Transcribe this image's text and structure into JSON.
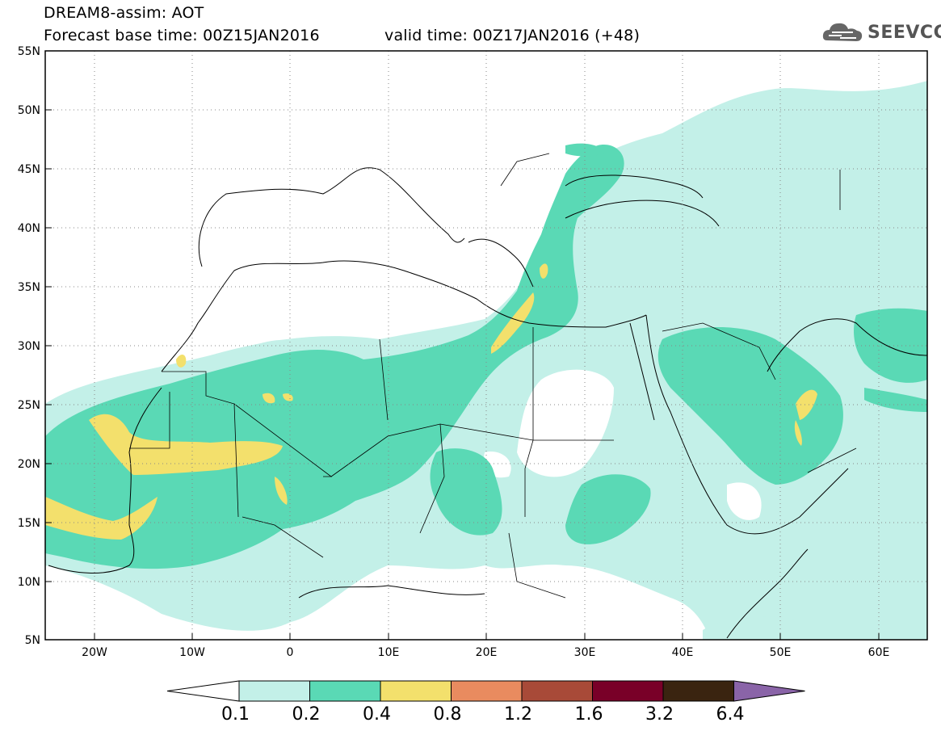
{
  "title": {
    "line1": "DREAM8-assim: AOT",
    "base": "Forecast base time: 00Z15JAN2016",
    "valid": "valid time: 00Z17JAN2016 (+48)"
  },
  "logo": {
    "text": "SEEVCCC",
    "icon": "cloud-icon"
  },
  "map": {
    "extent": {
      "lon": [
        -25,
        65
      ],
      "lat": [
        5,
        55
      ]
    },
    "lat_ticks": [
      "5N",
      "10N",
      "15N",
      "20N",
      "25N",
      "30N",
      "35N",
      "40N",
      "45N",
      "50N",
      "55N"
    ],
    "lon_ticks": [
      "20W",
      "10W",
      "0",
      "10E",
      "20E",
      "30E",
      "40E",
      "50E",
      "60E"
    ],
    "grid": "dotted"
  },
  "colorbar": {
    "labels": [
      "0.1",
      "0.2",
      "0.4",
      "0.8",
      "1.2",
      "1.6",
      "3.2",
      "6.4"
    ],
    "colors": [
      "#ffffff",
      "#c3f0e8",
      "#5ad9b5",
      "#f3e06c",
      "#e98b5f",
      "#a84a38",
      "#790028",
      "#3a2410",
      "#8a64a8"
    ]
  },
  "colors": {
    "light": "#c3f0e8",
    "mid": "#5ad9b5",
    "high": "#f3e06c"
  }
}
